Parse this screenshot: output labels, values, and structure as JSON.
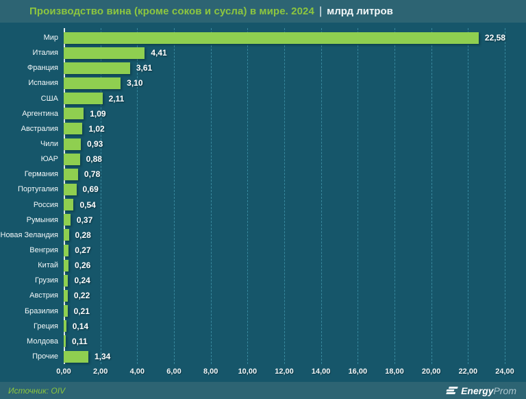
{
  "header": {
    "title": "Производство вина (кроме соков и сусла) в мире. 2024",
    "separator": "|",
    "unit": "млрд литров"
  },
  "chart_data": {
    "type": "bar",
    "orientation": "horizontal",
    "title": "Производство вина (кроме соков и сусла) в мире. 2024",
    "unit": "млрд литров",
    "categories": [
      "Мир",
      "Италия",
      "Франция",
      "Испания",
      "США",
      "Аргентина",
      "Австралия",
      "Чили",
      "ЮАР",
      "Германия",
      "Португалия",
      "Россия",
      "Румыния",
      "Новая Зеландия",
      "Венгрия",
      "Китай",
      "Грузия",
      "Австрия",
      "Бразилия",
      "Греция",
      "Молдова",
      "Прочие"
    ],
    "values": [
      22.58,
      4.41,
      3.61,
      3.1,
      2.11,
      1.09,
      1.02,
      0.93,
      0.88,
      0.78,
      0.69,
      0.54,
      0.37,
      0.28,
      0.27,
      0.26,
      0.24,
      0.22,
      0.21,
      0.14,
      0.11,
      1.34
    ],
    "value_labels": [
      "22,58",
      "4,41",
      "3,61",
      "3,10",
      "2,11",
      "1,09",
      "1,02",
      "0,93",
      "0,88",
      "0,78",
      "0,69",
      "0,54",
      "0,37",
      "0,28",
      "0,27",
      "0,26",
      "0,24",
      "0,22",
      "0,21",
      "0,14",
      "0,11",
      "1,34"
    ],
    "xlim": [
      0,
      24
    ],
    "x_tick_step": 2,
    "x_tick_labels": [
      "0,00",
      "2,00",
      "4,00",
      "6,00",
      "8,00",
      "10,00",
      "12,00",
      "14,00",
      "16,00",
      "18,00",
      "20,00",
      "22,00",
      "24,00"
    ],
    "grid": "dashed-vertical",
    "legend": "none"
  },
  "footer": {
    "source": "Источник: OIV",
    "brand_bold": "Energy",
    "brand_light": "Prom"
  },
  "colors": {
    "bar": "#8fcf50",
    "accent_green": "#8dc63f",
    "header_band": "#2d6473",
    "plot_background": "#16566a",
    "gridline": "#3f93a8",
    "axis_line": "#e6eef1",
    "text": "#ffffff",
    "brand_light_text": "#aec6ce"
  }
}
